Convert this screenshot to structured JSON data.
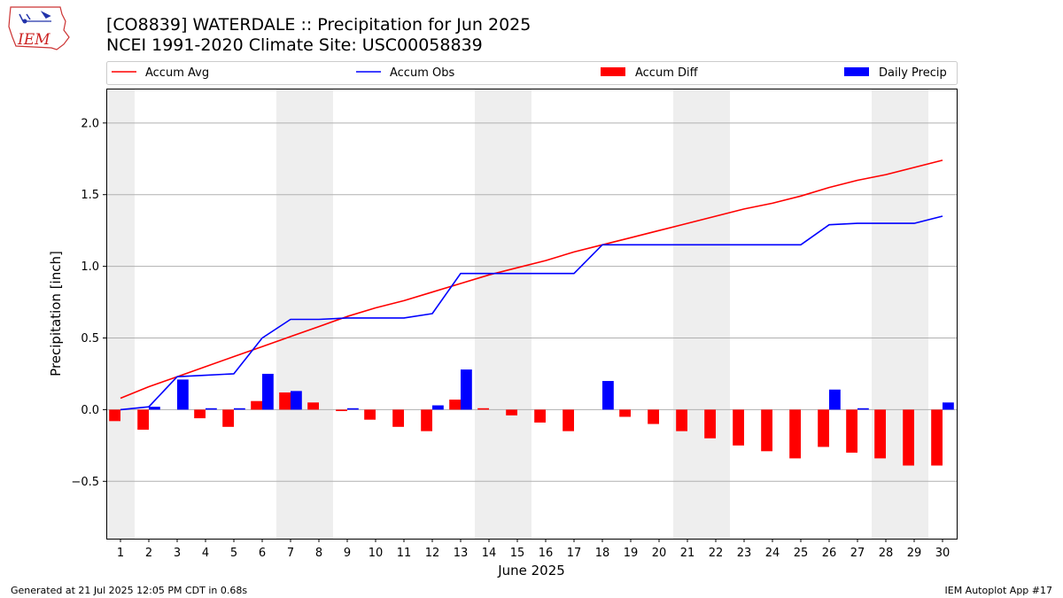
{
  "header": {
    "title_line1": "[CO8839] WATERDALE :: Precipitation for Jun 2025",
    "title_line2": "NCEI 1991-2020 Climate Site: USC00058839",
    "logo_text": "IEM"
  },
  "footer": {
    "generated": "Generated at 21 Jul 2025 12:05 PM CDT in 0.68s",
    "app": "IEM Autoplot App #17"
  },
  "colors": {
    "accum_avg": "#ff0000",
    "accum_obs": "#0000ff",
    "accum_diff": "#ff0000",
    "daily_precip": "#0000ff",
    "weekend_shade": "#eeeeee",
    "grid": "#b0b0b0"
  },
  "chart_data": {
    "type": "bar",
    "title": "[CO8839] WATERDALE :: Precipitation for Jun 2025",
    "subtitle": "NCEI 1991-2020 Climate Site: USC00058839",
    "xlabel": "June 2025",
    "ylabel": "Precipitation [inch]",
    "ylim": [
      -0.9,
      2.24
    ],
    "yticks": [
      -0.5,
      0.0,
      0.5,
      1.0,
      1.5,
      2.0
    ],
    "ytick_labels": [
      "−0.5",
      "0.0",
      "0.5",
      "1.0",
      "1.5",
      "2.0"
    ],
    "grid": "horizontal",
    "legend_position": "top",
    "legend": [
      "Accum Avg",
      "Accum Obs",
      "Accum Diff",
      "Daily Precip"
    ],
    "x": [
      1,
      2,
      3,
      4,
      5,
      6,
      7,
      8,
      9,
      10,
      11,
      12,
      13,
      14,
      15,
      16,
      17,
      18,
      19,
      20,
      21,
      22,
      23,
      24,
      25,
      26,
      27,
      28,
      29,
      30
    ],
    "weekend_shaded_days": [
      1,
      7,
      8,
      14,
      15,
      21,
      22,
      28,
      29
    ],
    "series": [
      {
        "name": "Accum Avg",
        "kind": "line",
        "values": [
          0.08,
          0.16,
          0.23,
          0.3,
          0.37,
          0.44,
          0.51,
          0.58,
          0.65,
          0.71,
          0.76,
          0.82,
          0.88,
          0.94,
          0.99,
          1.04,
          1.1,
          1.15,
          1.2,
          1.25,
          1.3,
          1.35,
          1.4,
          1.44,
          1.49,
          1.55,
          1.6,
          1.64,
          1.69,
          1.74
        ]
      },
      {
        "name": "Accum Obs",
        "kind": "line",
        "values": [
          0.0,
          0.02,
          0.23,
          0.24,
          0.25,
          0.5,
          0.63,
          0.63,
          0.64,
          0.64,
          0.64,
          0.67,
          0.95,
          0.95,
          0.95,
          0.95,
          0.95,
          1.15,
          1.15,
          1.15,
          1.15,
          1.15,
          1.15,
          1.15,
          1.15,
          1.29,
          1.3,
          1.3,
          1.3,
          1.35
        ]
      },
      {
        "name": "Accum Diff",
        "kind": "bar",
        "values": [
          -0.08,
          -0.14,
          0.0,
          -0.06,
          -0.12,
          0.06,
          0.12,
          0.05,
          -0.01,
          -0.07,
          -0.12,
          -0.15,
          0.07,
          0.01,
          -0.04,
          -0.09,
          -0.15,
          0.0,
          -0.05,
          -0.1,
          -0.15,
          -0.2,
          -0.25,
          -0.29,
          -0.34,
          -0.26,
          -0.3,
          -0.34,
          -0.39,
          -0.39
        ]
      },
      {
        "name": "Daily Precip",
        "kind": "bar",
        "values": [
          0.0,
          0.02,
          0.21,
          0.01,
          0.01,
          0.25,
          0.13,
          0.0,
          0.01,
          0.0,
          0.0,
          0.03,
          0.28,
          0.0,
          0.0,
          0.0,
          0.0,
          0.2,
          0.0,
          0.0,
          0.0,
          0.0,
          0.0,
          0.0,
          0.0,
          0.14,
          0.01,
          0.0,
          0.0,
          0.05
        ]
      }
    ]
  }
}
